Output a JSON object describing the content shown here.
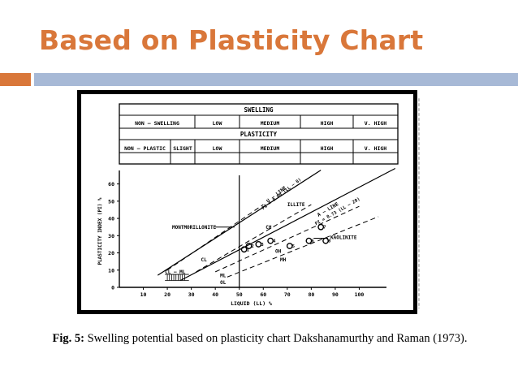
{
  "slide": {
    "title": "Based on Plasticity Chart",
    "accent_orange": "#d9773a",
    "accent_blue": "#a7b9d6"
  },
  "caption": {
    "label": "Fig. 5:",
    "text": " Swelling potential based on plasticity chart Dakshanamurthy and Raman (1973)."
  },
  "figure": {
    "table": {
      "swelling_title": "SWELLING",
      "swelling_cells": [
        "NON – SWELLING",
        "LOW",
        "MEDIUM",
        "HIGH",
        "V. HIGH"
      ],
      "plasticity_title": "PLASTICITY",
      "plasticity_cells": [
        "NON – PLASTIC",
        "SLIGHT",
        "LOW",
        "MEDIUM",
        "HIGH",
        "V. HIGH"
      ]
    }
  },
  "chart_data": {
    "type": "line",
    "xlabel": "LIQUID (LL) %",
    "ylabel": "PLASTICITY INDEX (PI) %",
    "xlim": [
      0,
      110
    ],
    "ylim": [
      0,
      65
    ],
    "x_ticks": [
      10,
      20,
      30,
      40,
      50,
      60,
      70,
      80,
      90,
      100
    ],
    "x_tick_labels": [
      "10",
      "20",
      "30",
      "40",
      "50",
      "60",
      "70",
      "80",
      "90",
      "100"
    ],
    "y_ticks": [
      0,
      10,
      20,
      30,
      40,
      50,
      60
    ],
    "y_tick_labels": [
      "0",
      "10",
      "20",
      "30",
      "40",
      "50",
      "60"
    ],
    "lines": [
      {
        "name": "U – LINE",
        "equation": "PI = 0.90 (LL – 8)",
        "style": "solid",
        "points": [
          [
            16,
            7
          ],
          [
            84,
            68
          ]
        ]
      },
      {
        "name": "A – LINE",
        "equation": "PI = 0.73 (LL – 20)",
        "style": "solid",
        "points": [
          [
            25.5,
            4
          ],
          [
            115,
            69
          ]
        ]
      },
      {
        "name": "dashed-1",
        "style": "dashed",
        "points": [
          [
            20,
            10
          ],
          [
            60,
            48
          ]
        ]
      },
      {
        "name": "dashed-2",
        "style": "dashed",
        "points": [
          [
            32,
            9
          ],
          [
            80,
            48
          ]
        ]
      },
      {
        "name": "dashed-3",
        "style": "dashed",
        "points": [
          [
            40,
            9
          ],
          [
            100,
            47
          ]
        ]
      },
      {
        "name": "dashed-4",
        "style": "dashed",
        "points": [
          [
            45,
            6
          ],
          [
            108,
            41
          ]
        ]
      },
      {
        "name": "LL=50 boundary",
        "style": "solid",
        "points": [
          [
            50,
            0
          ],
          [
            50,
            65
          ]
        ]
      }
    ],
    "regions": [
      {
        "label": "CL – ML",
        "x": 19,
        "y": 8
      },
      {
        "label": "CL",
        "x": 34,
        "y": 15
      },
      {
        "label": "ML",
        "x": 42,
        "y": 6
      },
      {
        "label": "OL",
        "x": 42,
        "y": 2
      },
      {
        "label": "CH",
        "x": 61,
        "y": 34
      },
      {
        "label": "OH",
        "x": 65,
        "y": 20
      },
      {
        "label": "MH",
        "x": 67,
        "y": 15
      },
      {
        "label": "ILLITE",
        "x": 70,
        "y": 47
      },
      {
        "label": "KAOLINITE",
        "x": 88,
        "y": 28
      },
      {
        "label": "MONTMORILLONITE",
        "x": 22,
        "y": 34
      }
    ],
    "points": [
      {
        "label": "1",
        "x": 52,
        "y": 22
      },
      {
        "label": "2",
        "x": 54,
        "y": 24
      },
      {
        "label": "3",
        "x": 58,
        "y": 25
      },
      {
        "label": "4",
        "x": 63,
        "y": 27
      },
      {
        "label": "5",
        "x": 71,
        "y": 24
      },
      {
        "label": "6",
        "x": 79,
        "y": 27
      },
      {
        "label": "7",
        "x": 84,
        "y": 35
      },
      {
        "label": "8",
        "x": 86,
        "y": 27
      }
    ]
  }
}
